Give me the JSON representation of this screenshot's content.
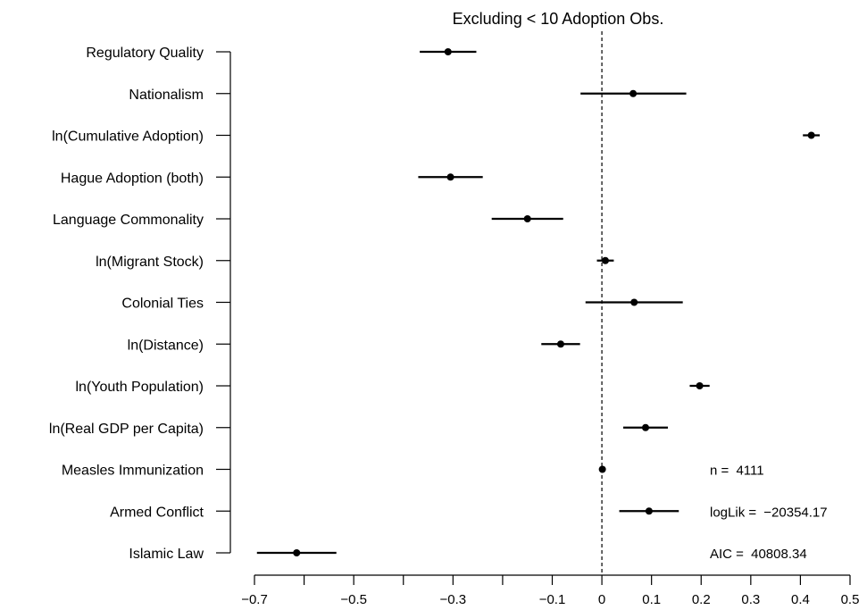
{
  "chart_data": {
    "type": "coefficient-plot",
    "title": "Excluding < 10 Adoption Obs.",
    "xlim": [
      -0.7,
      0.5
    ],
    "x_ticks": [
      -0.7,
      -0.6,
      -0.5,
      -0.4,
      -0.3,
      -0.2,
      -0.1,
      0.0,
      0.1,
      0.2,
      0.3,
      0.4,
      0.5
    ],
    "x_tick_labels": [
      "−0.7",
      "",
      "−0.5",
      "",
      "−0.3",
      "",
      "−0.1",
      "0",
      "0.1",
      "0.2",
      "0.3",
      "0.4",
      "0.5"
    ],
    "reference_line": 0,
    "grid": false,
    "variables": [
      {
        "label": "Regulatory Quality",
        "estimate": -0.31,
        "lower": -0.367,
        "upper": -0.253
      },
      {
        "label": "Nationalism",
        "estimate": 0.063,
        "lower": -0.043,
        "upper": 0.17
      },
      {
        "label": "ln(Cumulative Adoption)",
        "estimate": 0.422,
        "lower": 0.405,
        "upper": 0.439
      },
      {
        "label": "Hague Adoption (both)",
        "estimate": -0.305,
        "lower": -0.37,
        "upper": -0.24
      },
      {
        "label": "Language Commonality",
        "estimate": -0.15,
        "lower": -0.222,
        "upper": -0.078
      },
      {
        "label": "ln(Migrant Stock)",
        "estimate": 0.007,
        "lower": -0.01,
        "upper": 0.024
      },
      {
        "label": "Colonial Ties",
        "estimate": 0.065,
        "lower": -0.033,
        "upper": 0.163
      },
      {
        "label": "ln(Distance)",
        "estimate": -0.083,
        "lower": -0.122,
        "upper": -0.044
      },
      {
        "label": "ln(Youth Population)",
        "estimate": 0.197,
        "lower": 0.177,
        "upper": 0.217
      },
      {
        "label": "ln(Real GDP per Capita)",
        "estimate": 0.088,
        "lower": 0.043,
        "upper": 0.133
      },
      {
        "label": "Measles Immunization",
        "estimate": 0.001,
        "lower": -0.003,
        "upper": 0.005
      },
      {
        "label": "Armed Conflict",
        "estimate": 0.095,
        "lower": 0.035,
        "upper": 0.155
      },
      {
        "label": "Islamic Law",
        "estimate": -0.615,
        "lower": -0.695,
        "upper": -0.535
      }
    ],
    "annotations": [
      {
        "label": "n =",
        "value": "4111"
      },
      {
        "label": "logLik =",
        "value": "−20354.17"
      },
      {
        "label": "AIC =",
        "value": "40808.34"
      }
    ]
  }
}
